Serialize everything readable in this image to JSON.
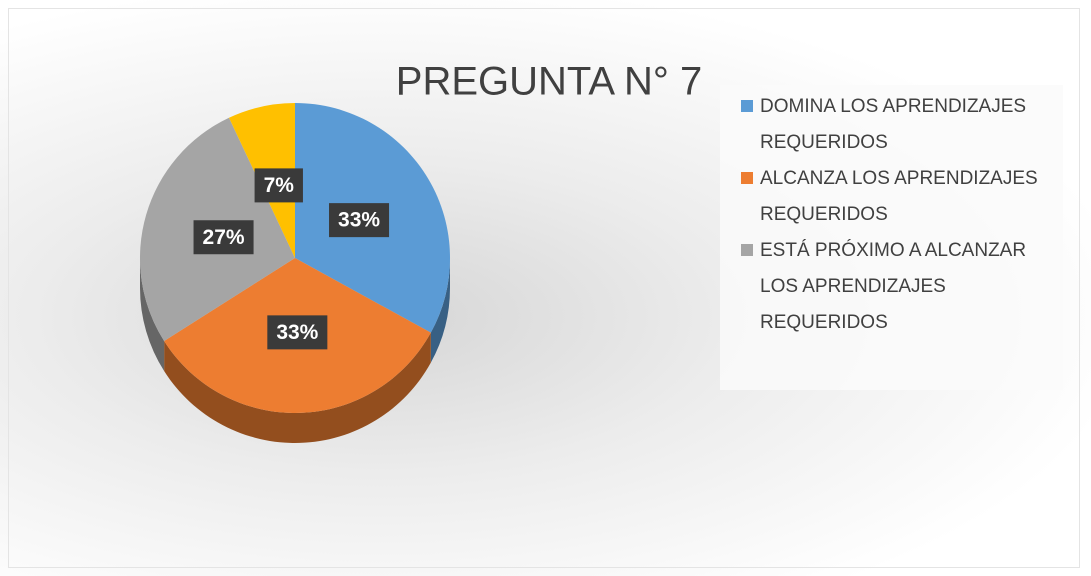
{
  "chart_data": {
    "type": "pie",
    "title": "PREGUNTA N° 7",
    "categories": [
      "DOMINA LOS APRENDIZAJES REQUERIDOS",
      "ALCANZA LOS APRENDIZAJES REQUERIDOS",
      "ESTÁ PRÓXIMO A ALCANZAR LOS APRENDIZAJES REQUERIDOS",
      null
    ],
    "values": [
      33,
      33,
      27,
      7
    ],
    "value_labels": [
      "33%",
      "33%",
      "27%",
      "7%"
    ],
    "colors": [
      "#5b9bd5",
      "#ed7d31",
      "#a5a5a5",
      "#ffc000"
    ],
    "legend": "right"
  }
}
